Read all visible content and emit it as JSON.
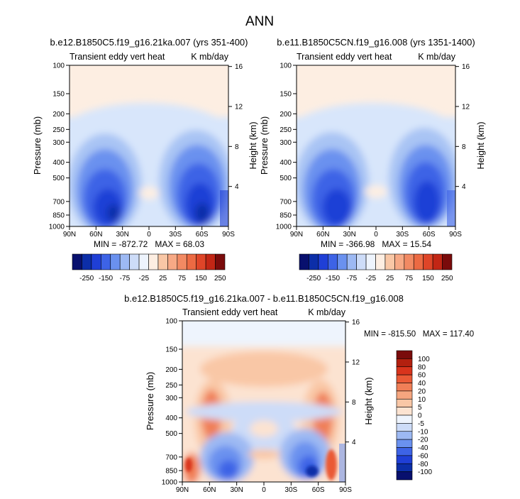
{
  "page": {
    "title": "ANN"
  },
  "colors": {
    "deep_blue": "#08106e",
    "blue": "#1f3fd6",
    "mid_blue": "#4f78ec",
    "light_blue": "#a9c4f4",
    "pale_blue": "#d8e6fb",
    "pale_peach": "#fde6d4",
    "peach": "#f9c7a6",
    "orange": "#ef7a4a",
    "red": "#d9341c",
    "dark_red": "#7a0b0b"
  },
  "chart_data": [
    {
      "type": "heatmap",
      "title": "b.e12.B1850C5.f19_g16.21ka.007 (yrs 351-400)",
      "left_string": "Transient eddy vert heat",
      "right_string": "K mb/day",
      "ylabel": "Pressure (mb)",
      "ylabel_right": "Height (km)",
      "x_tick_labels": [
        "90N",
        "60N",
        "30N",
        "0",
        "30S",
        "60S",
        "90S"
      ],
      "x_values": [
        90,
        60,
        30,
        0,
        -30,
        -60,
        -90
      ],
      "y_tick_labels": [
        "100",
        "150",
        "200",
        "250",
        "300",
        "400",
        "500",
        "700",
        "850",
        "1000"
      ],
      "y_values": [
        100,
        150,
        200,
        250,
        300,
        400,
        500,
        700,
        850,
        1000
      ],
      "ylim": [
        1000,
        100
      ],
      "y_scale": "log",
      "height_tick_labels": [
        "16",
        "12",
        "8",
        "4"
      ],
      "height_values": [
        16,
        12,
        8,
        4
      ],
      "stats": "MIN = -872.72   MAX = 68.03",
      "min": -872.72,
      "max": 68.03
    },
    {
      "type": "heatmap",
      "title": "b.e11.B1850C5CN.f19_g16.008 (yrs 1351-1400)",
      "left_string": "Transient eddy vert heat",
      "right_string": "K mb/day",
      "ylabel": "Pressure (mb)",
      "ylabel_right": "Height (km)",
      "x_tick_labels": [
        "90N",
        "60N",
        "30N",
        "0",
        "30S",
        "60S",
        "90S"
      ],
      "x_values": [
        90,
        60,
        30,
        0,
        -30,
        -60,
        -90
      ],
      "y_tick_labels": [
        "100",
        "150",
        "200",
        "250",
        "300",
        "400",
        "500",
        "700",
        "850",
        "1000"
      ],
      "y_values": [
        100,
        150,
        200,
        250,
        300,
        400,
        500,
        700,
        850,
        1000
      ],
      "ylim": [
        1000,
        100
      ],
      "y_scale": "log",
      "height_tick_labels": [
        "16",
        "12",
        "8",
        "4"
      ],
      "height_values": [
        16,
        12,
        8,
        4
      ],
      "stats": "MIN = -366.98   MAX = 15.54",
      "min": -366.98,
      "max": 15.54
    },
    {
      "type": "heatmap",
      "title": "b.e12.B1850C5.f19_g16.21ka.007 - b.e11.B1850C5CN.f19_g16.008",
      "left_string": "Transient eddy vert heat",
      "right_string": "K mb/day",
      "ylabel": "Pressure (mb)",
      "ylabel_right": "Height (km)",
      "x_tick_labels": [
        "90N",
        "60N",
        "30N",
        "0",
        "30S",
        "60S",
        "90S"
      ],
      "x_values": [
        90,
        60,
        30,
        0,
        -30,
        -60,
        -90
      ],
      "y_tick_labels": [
        "100",
        "150",
        "200",
        "250",
        "300",
        "400",
        "500",
        "700",
        "850",
        "1000"
      ],
      "y_values": [
        100,
        150,
        200,
        250,
        300,
        400,
        500,
        700,
        850,
        1000
      ],
      "ylim": [
        1000,
        100
      ],
      "y_scale": "log",
      "height_tick_labels": [
        "16",
        "12",
        "8",
        "4"
      ],
      "height_values": [
        16,
        12,
        8,
        4
      ],
      "stats": "MIN = -815.50   MAX = 117.40",
      "min": -815.5,
      "max": 117.4
    }
  ],
  "colorbars": {
    "top": {
      "labels": [
        "-250",
        "-150",
        "-75",
        "-25",
        "25",
        "75",
        "150",
        "250"
      ],
      "colors": [
        "#08106e",
        "#0c2ea8",
        "#1f3fd6",
        "#3d63e6",
        "#6a91ef",
        "#9db9f3",
        "#cddcf8",
        "#eef4fd",
        "#fdeee2",
        "#f9c7a6",
        "#f7a985",
        "#f28a63",
        "#ec6a43",
        "#df4528",
        "#c22615",
        "#7a0b0b"
      ]
    },
    "diff": {
      "labels": [
        "100",
        "80",
        "60",
        "40",
        "20",
        "10",
        "5",
        "0",
        "-5",
        "-10",
        "-20",
        "-40",
        "-60",
        "-80",
        "-100"
      ],
      "colors": [
        "#7a0b0b",
        "#b3200f",
        "#d9341c",
        "#ea5a36",
        "#f07f57",
        "#f6a67f",
        "#f9c7a6",
        "#fce3d1",
        "#eef4fd",
        "#cddcf8",
        "#9db9f3",
        "#6a91ef",
        "#3d63e6",
        "#1f3fd6",
        "#0c2ea8",
        "#08106e"
      ]
    }
  }
}
